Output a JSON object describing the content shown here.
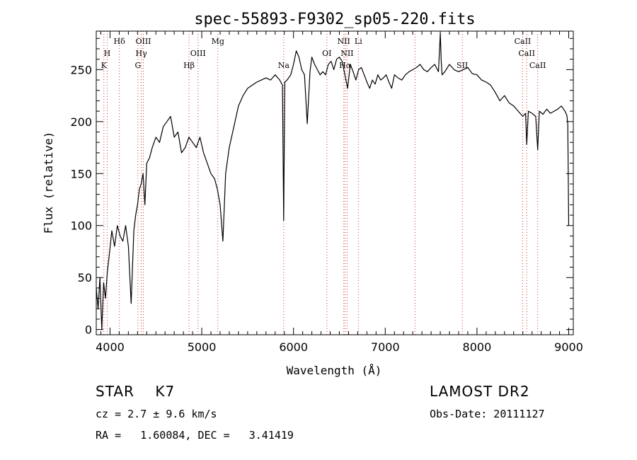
{
  "chart_data": {
    "type": "line",
    "title": "spec-55893-F9302_sp05-220.fits",
    "xlabel": "Wavelength (Å)",
    "ylabel": "Flux (relative)",
    "xlim": [
      3850,
      9050
    ],
    "ylim": [
      -5,
      287
    ],
    "x_ticks": [
      4000,
      5000,
      6000,
      7000,
      8000,
      9000
    ],
    "y_ticks": [
      0,
      50,
      100,
      150,
      200,
      250
    ],
    "grid": false,
    "legend": "none",
    "line_color": "#000000",
    "marker_color": "#cc3333",
    "series": [
      {
        "x": [
          3850,
          3870,
          3890,
          3910,
          3930,
          3950,
          3970,
          3990,
          4020,
          4050,
          4080,
          4110,
          4140,
          4170,
          4200,
          4230,
          4260,
          4280,
          4300,
          4320,
          4340,
          4360,
          4380,
          4400,
          4430,
          4460,
          4500,
          4540,
          4580,
          4620,
          4660,
          4700,
          4740,
          4780,
          4820,
          4860,
          4900,
          4940,
          4980,
          5020,
          5060,
          5100,
          5140,
          5170,
          5200,
          5230,
          5260,
          5300,
          5350,
          5400,
          5450,
          5500,
          5550,
          5600,
          5650,
          5700,
          5750,
          5800,
          5850,
          5880,
          5893,
          5905,
          5930,
          5970,
          6000,
          6030,
          6060,
          6090,
          6120,
          6150,
          6180,
          6200,
          6230,
          6260,
          6290,
          6320,
          6350,
          6380,
          6410,
          6440,
          6470,
          6500,
          6530,
          6560,
          6590,
          6620,
          6650,
          6680,
          6710,
          6740,
          6770,
          6800,
          6830,
          6860,
          6890,
          6920,
          6950,
          6980,
          7010,
          7040,
          7070,
          7100,
          7140,
          7180,
          7220,
          7260,
          7300,
          7340,
          7380,
          7420,
          7460,
          7500,
          7540,
          7580,
          7600,
          7610,
          7620,
          7650,
          7700,
          7750,
          7800,
          7850,
          7900,
          7950,
          8000,
          8050,
          8100,
          8150,
          8200,
          8250,
          8300,
          8350,
          8400,
          8450,
          8500,
          8530,
          8542,
          8560,
          8600,
          8640,
          8662,
          8680,
          8720,
          8760,
          8800,
          8840,
          8880,
          8920,
          8960,
          8980,
          8990,
          9000
        ],
        "y": [
          40,
          20,
          50,
          0,
          45,
          30,
          55,
          70,
          95,
          80,
          100,
          90,
          85,
          100,
          80,
          25,
          95,
          110,
          120,
          135,
          140,
          150,
          120,
          160,
          165,
          175,
          185,
          180,
          195,
          200,
          205,
          185,
          190,
          170,
          175,
          185,
          180,
          175,
          185,
          170,
          160,
          150,
          145,
          135,
          120,
          85,
          150,
          175,
          195,
          215,
          225,
          232,
          235,
          238,
          240,
          242,
          240,
          245,
          240,
          235,
          105,
          238,
          240,
          245,
          255,
          268,
          262,
          250,
          245,
          198,
          248,
          262,
          255,
          250,
          245,
          248,
          245,
          255,
          258,
          250,
          260,
          262,
          258,
          245,
          232,
          255,
          248,
          240,
          250,
          252,
          245,
          238,
          232,
          240,
          236,
          245,
          240,
          242,
          245,
          238,
          232,
          245,
          242,
          240,
          245,
          248,
          250,
          252,
          255,
          250,
          248,
          252,
          255,
          248,
          285,
          258,
          245,
          248,
          255,
          250,
          248,
          250,
          252,
          246,
          245,
          240,
          238,
          235,
          228,
          220,
          225,
          218,
          215,
          210,
          205,
          208,
          178,
          210,
          208,
          205,
          173,
          210,
          207,
          212,
          208,
          210,
          212,
          215,
          210,
          206,
          198,
          100
        ]
      }
    ],
    "line_markers": [
      {
        "x": 3933,
        "label": "K",
        "row": 3
      },
      {
        "x": 3969,
        "label": "H",
        "row": 2
      },
      {
        "x": 4102,
        "label": "Hδ",
        "row": 1
      },
      {
        "x": 4304,
        "label": "G",
        "row": 3
      },
      {
        "x": 4341,
        "label": "Hγ",
        "row": 2
      },
      {
        "x": 4363,
        "label": "OIII",
        "row": 1
      },
      {
        "x": 4861,
        "label": "Hβ",
        "row": 3
      },
      {
        "x": 4959,
        "label": "OIII",
        "row": 2
      },
      {
        "x": 5175,
        "label": "Mg",
        "row": 1
      },
      {
        "x": 5893,
        "label": "Na",
        "row": 3
      },
      {
        "x": 6364,
        "label": "OI",
        "row": 2
      },
      {
        "x": 6548,
        "label": "NII",
        "row": 1
      },
      {
        "x": 6563,
        "label": "Hα",
        "row": 3
      },
      {
        "x": 6584,
        "label": "NII",
        "row": 2
      },
      {
        "x": 6707,
        "label": "Li",
        "row": 1
      },
      {
        "x": 7325,
        "label": "",
        "row": 0
      },
      {
        "x": 7840,
        "label": "SII",
        "row": 3
      },
      {
        "x": 8498,
        "label": "CaII",
        "row": 1
      },
      {
        "x": 8542,
        "label": "CaII",
        "row": 2
      },
      {
        "x": 8662,
        "label": "CaII",
        "row": 3
      }
    ]
  },
  "info": {
    "star_label": "STAR    K7",
    "survey": "LAMOST DR2",
    "cz": "cz = 2.7 ± 9.6 km/s",
    "obs_date": "Obs-Date: 20111127",
    "radec": "RA =   1.60084, DEC =   3.41419"
  }
}
